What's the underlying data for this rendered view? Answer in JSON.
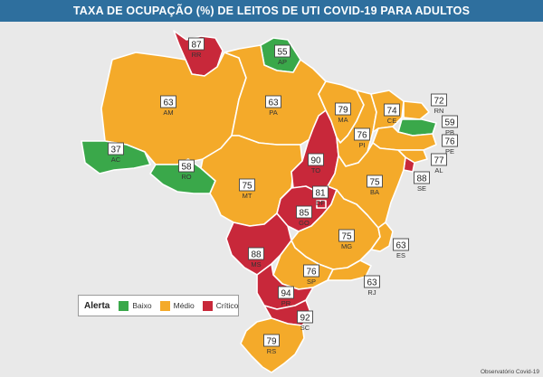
{
  "title": "TAXA DE OCUPAÇÃO (%) DE LEITOS DE UTI COVID-19 PARA ADULTOS",
  "colors": {
    "baixo": "#3aa84a",
    "medio": "#f4aa2a",
    "critico": "#c8283a"
  },
  "legend": {
    "title": "Alerta",
    "items": [
      {
        "label": "Baixo",
        "level": "baixo"
      },
      {
        "label": "Médio",
        "level": "medio"
      },
      {
        "label": "Crítico",
        "level": "critico"
      }
    ]
  },
  "states": [
    {
      "abbr": "RR",
      "value": "87",
      "level": "critico"
    },
    {
      "abbr": "AP",
      "value": "55",
      "level": "baixo"
    },
    {
      "abbr": "AM",
      "value": "63",
      "level": "medio"
    },
    {
      "abbr": "PA",
      "value": "63",
      "level": "medio"
    },
    {
      "abbr": "MA",
      "value": "79",
      "level": "medio"
    },
    {
      "abbr": "CE",
      "value": "74",
      "level": "medio"
    },
    {
      "abbr": "RN",
      "value": "72",
      "level": "medio"
    },
    {
      "abbr": "PB",
      "value": "59",
      "level": "baixo"
    },
    {
      "abbr": "PE",
      "value": "76",
      "level": "medio"
    },
    {
      "abbr": "AL",
      "value": "77",
      "level": "medio"
    },
    {
      "abbr": "SE",
      "value": "88",
      "level": "critico"
    },
    {
      "abbr": "PI",
      "value": "76",
      "level": "medio"
    },
    {
      "abbr": "AC",
      "value": "37",
      "level": "baixo"
    },
    {
      "abbr": "RO",
      "value": "58",
      "level": "baixo"
    },
    {
      "abbr": "MT",
      "value": "75",
      "level": "medio"
    },
    {
      "abbr": "TO",
      "value": "90",
      "level": "critico"
    },
    {
      "abbr": "BA",
      "value": "75",
      "level": "medio"
    },
    {
      "abbr": "DF",
      "value": "81",
      "level": "critico"
    },
    {
      "abbr": "GO",
      "value": "85",
      "level": "critico"
    },
    {
      "abbr": "MG",
      "value": "75",
      "level": "medio"
    },
    {
      "abbr": "ES",
      "value": "63",
      "level": "medio"
    },
    {
      "abbr": "MS",
      "value": "88",
      "level": "critico"
    },
    {
      "abbr": "SP",
      "value": "76",
      "level": "medio"
    },
    {
      "abbr": "RJ",
      "value": "63",
      "level": "medio"
    },
    {
      "abbr": "PR",
      "value": "94",
      "level": "critico"
    },
    {
      "abbr": "SC",
      "value": "92",
      "level": "critico"
    },
    {
      "abbr": "RS",
      "value": "79",
      "level": "medio"
    }
  ],
  "credit": "Observatório Covid-19"
}
